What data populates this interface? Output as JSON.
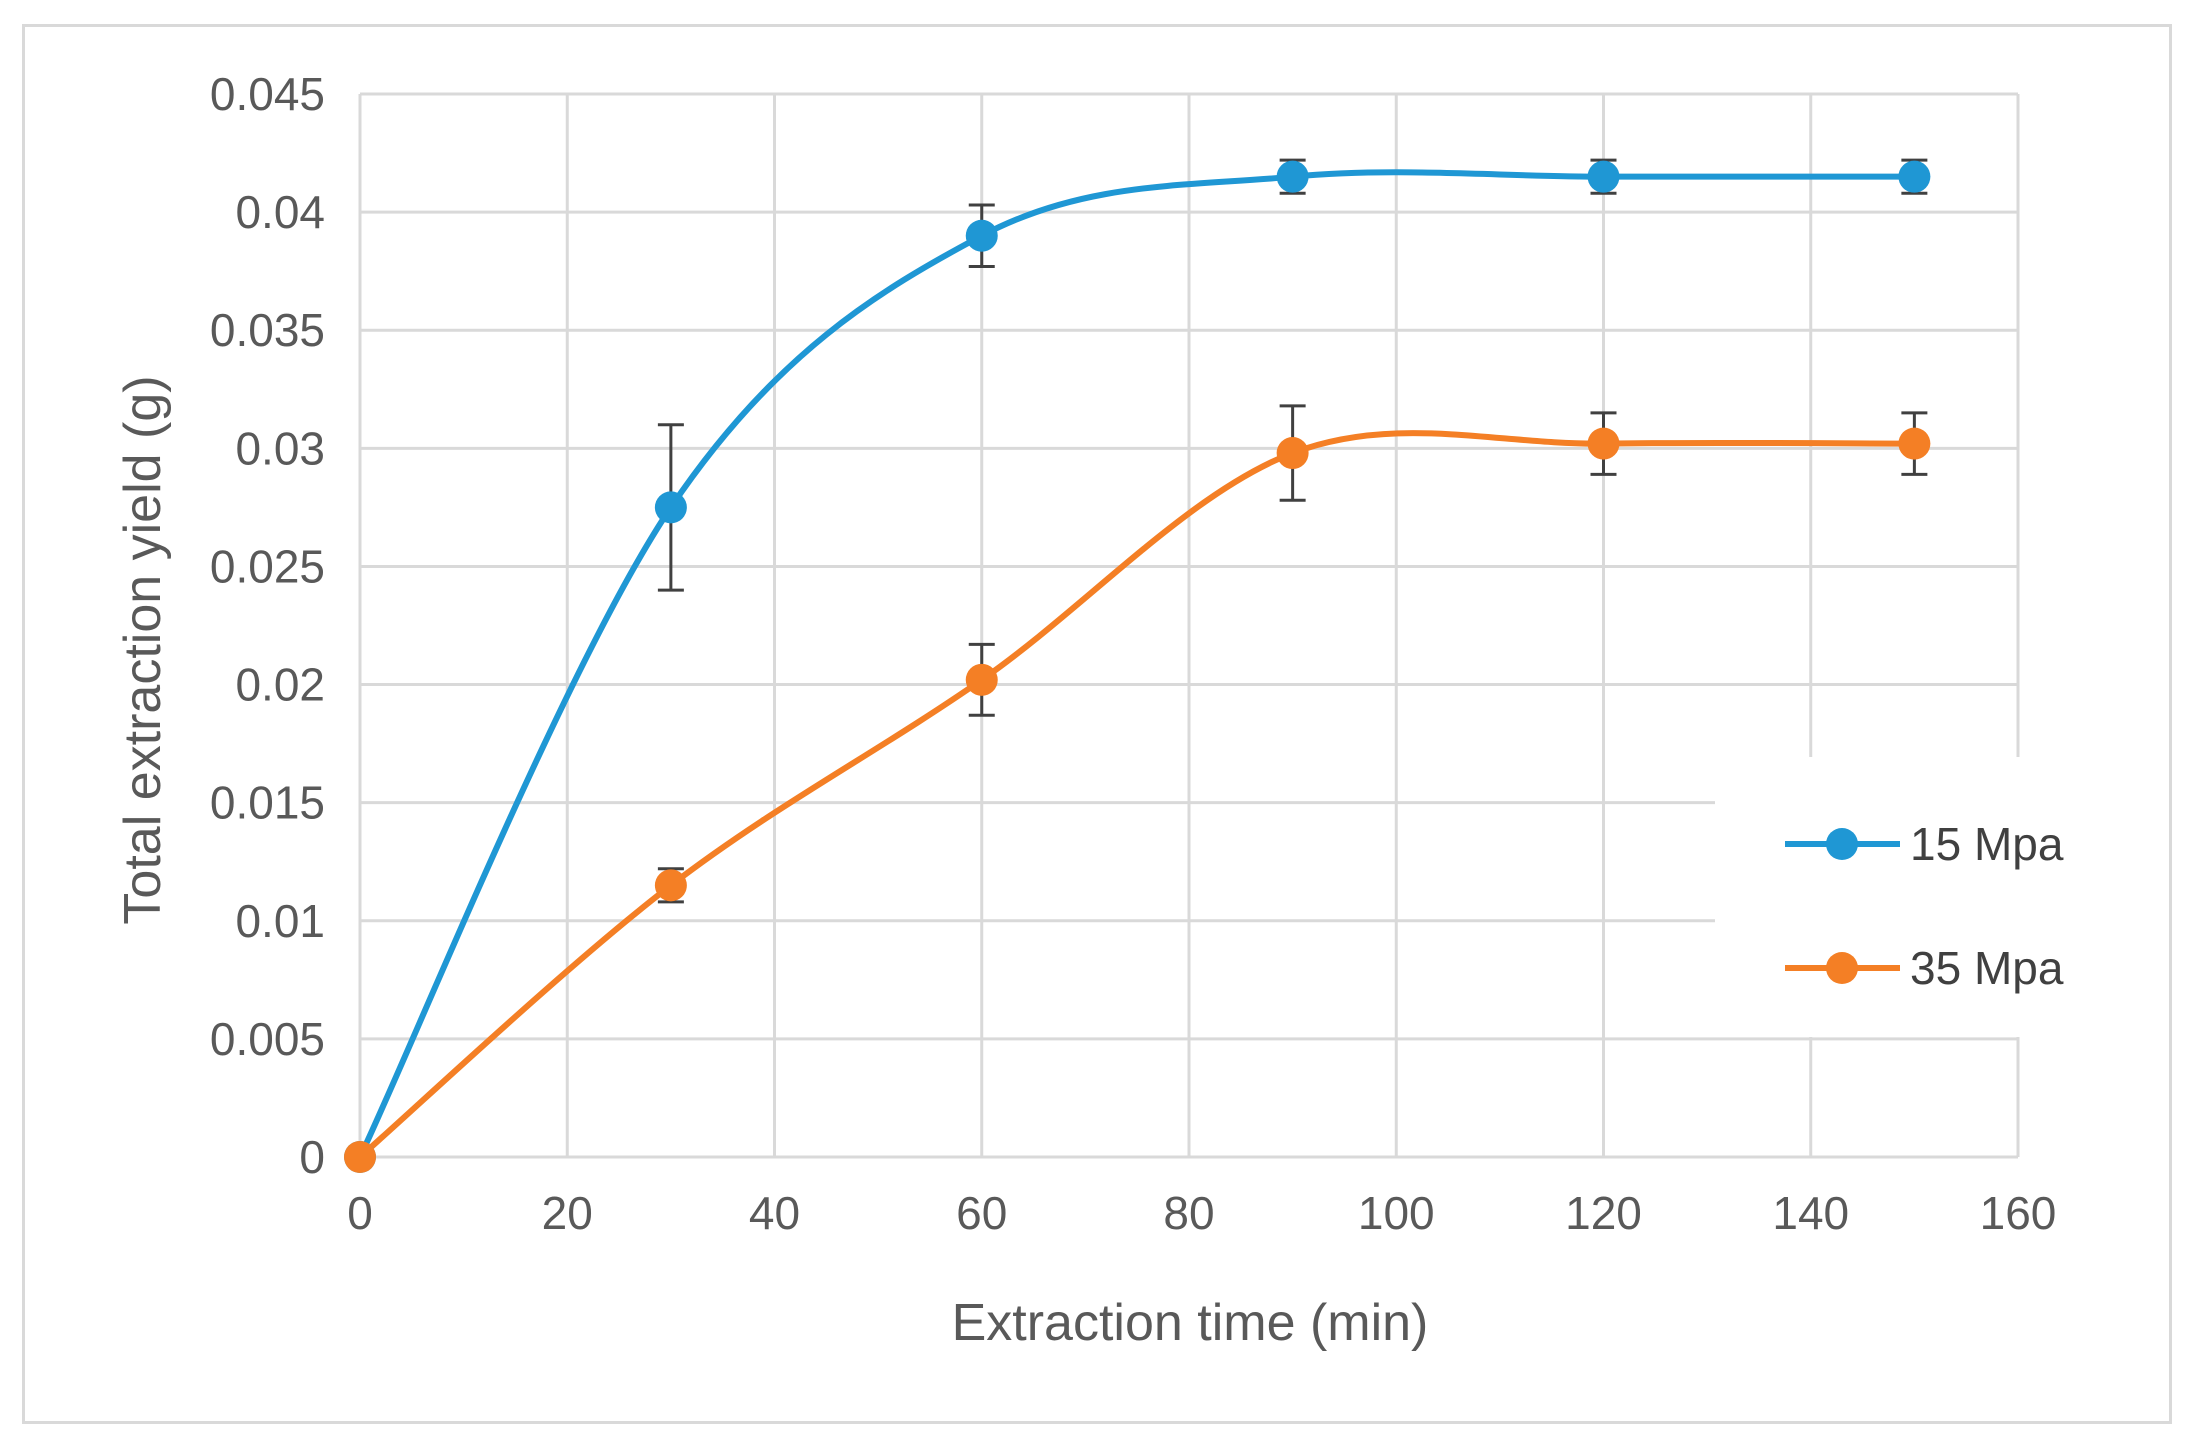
{
  "chart_data": {
    "type": "line",
    "title": "",
    "xlabel": "Extraction time (min)",
    "ylabel": "Total extraction yield  (g)",
    "xlim": [
      0,
      160
    ],
    "ylim": [
      0,
      0.045
    ],
    "x_ticks": [
      "0",
      "20",
      "40",
      "60",
      "80",
      "100",
      "120",
      "140",
      "160"
    ],
    "y_ticks": [
      "0",
      "0.005",
      "0.01",
      "0.015",
      "0.02",
      "0.025",
      "0.03",
      "0.035",
      "0.04",
      "0.045"
    ],
    "x_tick_values": [
      0,
      20,
      40,
      60,
      80,
      100,
      120,
      140,
      160
    ],
    "y_tick_values": [
      0,
      0.005,
      0.01,
      0.015,
      0.02,
      0.025,
      0.03,
      0.035,
      0.04,
      0.045
    ],
    "grid": true,
    "smooth": true,
    "legend_position": "right",
    "series": [
      {
        "name": "15 Mpa",
        "color": "#1f97d4",
        "x": [
          0,
          30,
          60,
          90,
          120,
          150
        ],
        "y": [
          0,
          0.0275,
          0.039,
          0.0415,
          0.0415,
          0.0415
        ],
        "error": [
          0,
          0.0035,
          0.0013,
          0.0007,
          0.0007,
          0.0007
        ]
      },
      {
        "name": "35 Mpa",
        "color": "#f47f25",
        "x": [
          0,
          30,
          60,
          90,
          120,
          150
        ],
        "y": [
          0,
          0.0115,
          0.0202,
          0.0298,
          0.0302,
          0.0302
        ],
        "error": [
          0,
          0.0007,
          0.0015,
          0.002,
          0.0013,
          0.0013
        ]
      }
    ]
  },
  "colors": {
    "grid": "#d9d9d9",
    "error_bar": "#404040",
    "text": "#595959"
  }
}
